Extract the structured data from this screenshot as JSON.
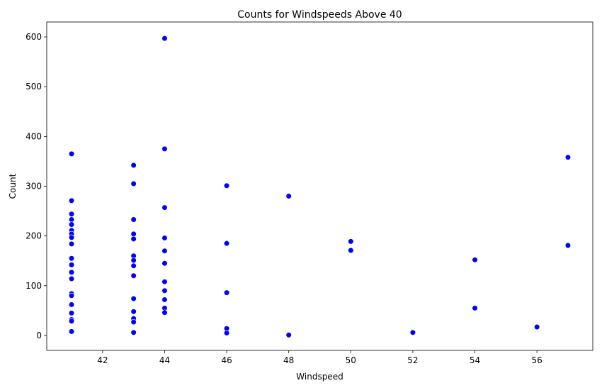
{
  "chart_data": {
    "type": "scatter",
    "title": "Counts for Windspeeds Above 40",
    "xlabel": "Windspeed",
    "ylabel": "Count",
    "xlim": [
      40.2,
      57.8
    ],
    "ylim": [
      -30,
      630
    ],
    "xticks": [
      42,
      44,
      46,
      48,
      50,
      52,
      54,
      56
    ],
    "yticks": [
      0,
      100,
      200,
      300,
      400,
      500,
      600
    ],
    "grid": false,
    "marker_color": "#0000ff",
    "points": [
      {
        "x": 41,
        "y": 365
      },
      {
        "x": 41,
        "y": 271
      },
      {
        "x": 41,
        "y": 244
      },
      {
        "x": 41,
        "y": 233
      },
      {
        "x": 41,
        "y": 223
      },
      {
        "x": 41,
        "y": 211
      },
      {
        "x": 41,
        "y": 204
      },
      {
        "x": 41,
        "y": 197
      },
      {
        "x": 41,
        "y": 184
      },
      {
        "x": 41,
        "y": 155
      },
      {
        "x": 41,
        "y": 142
      },
      {
        "x": 41,
        "y": 127
      },
      {
        "x": 41,
        "y": 114
      },
      {
        "x": 41,
        "y": 84
      },
      {
        "x": 41,
        "y": 80
      },
      {
        "x": 41,
        "y": 62
      },
      {
        "x": 41,
        "y": 45
      },
      {
        "x": 41,
        "y": 32
      },
      {
        "x": 41,
        "y": 29
      },
      {
        "x": 41,
        "y": 8
      },
      {
        "x": 43,
        "y": 342
      },
      {
        "x": 43,
        "y": 305
      },
      {
        "x": 43,
        "y": 233
      },
      {
        "x": 43,
        "y": 204
      },
      {
        "x": 43,
        "y": 194
      },
      {
        "x": 43,
        "y": 160
      },
      {
        "x": 43,
        "y": 151
      },
      {
        "x": 43,
        "y": 140
      },
      {
        "x": 43,
        "y": 120
      },
      {
        "x": 43,
        "y": 74
      },
      {
        "x": 43,
        "y": 48
      },
      {
        "x": 43,
        "y": 34
      },
      {
        "x": 43,
        "y": 27
      },
      {
        "x": 43,
        "y": 6
      },
      {
        "x": 44,
        "y": 597
      },
      {
        "x": 44,
        "y": 375
      },
      {
        "x": 44,
        "y": 257
      },
      {
        "x": 44,
        "y": 196
      },
      {
        "x": 44,
        "y": 170
      },
      {
        "x": 44,
        "y": 145
      },
      {
        "x": 44,
        "y": 108
      },
      {
        "x": 44,
        "y": 90
      },
      {
        "x": 44,
        "y": 72
      },
      {
        "x": 44,
        "y": 55
      },
      {
        "x": 44,
        "y": 46
      },
      {
        "x": 46,
        "y": 301
      },
      {
        "x": 46,
        "y": 185
      },
      {
        "x": 46,
        "y": 86
      },
      {
        "x": 46,
        "y": 14
      },
      {
        "x": 46,
        "y": 5
      },
      {
        "x": 48,
        "y": 280
      },
      {
        "x": 48,
        "y": 1
      },
      {
        "x": 50,
        "y": 189
      },
      {
        "x": 50,
        "y": 171
      },
      {
        "x": 52,
        "y": 6
      },
      {
        "x": 54,
        "y": 152
      },
      {
        "x": 54,
        "y": 55
      },
      {
        "x": 56,
        "y": 17
      },
      {
        "x": 57,
        "y": 358
      },
      {
        "x": 57,
        "y": 181
      }
    ]
  }
}
